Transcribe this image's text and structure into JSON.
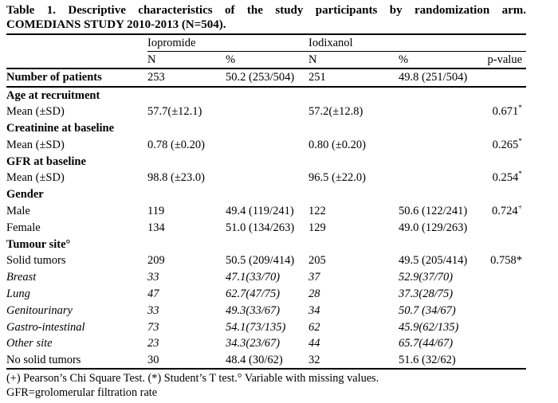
{
  "page": {
    "background": "#ffffff",
    "text_color": "#000000",
    "watermark_color": "#d9d9d9"
  },
  "title": {
    "line1": "Table 1. Descriptive characteristics of the study participants by randomization arm.",
    "line2": "COMEDIANS STUDY 2010-2013 (N=504)."
  },
  "table": {
    "group_headers": {
      "arm1": "Iopromide",
      "arm2": "Iodixanol"
    },
    "col_headers": {
      "n1": "N",
      "pct1": "%",
      "n2": "N",
      "pct2": "%",
      "p": "p-value"
    },
    "rows": [
      {
        "label": "Number of patients",
        "bold": true,
        "italic": false,
        "thick_bottom": true,
        "n1": "253",
        "pct1": "50.2 (253/504)",
        "n2": "251",
        "pct2": "49.8 (251/504)",
        "p": "",
        "p_sup": ""
      },
      {
        "label": "Age at recruitment",
        "bold": true,
        "italic": false,
        "thick_bottom": false,
        "n1": "",
        "pct1": "",
        "n2": "",
        "pct2": "",
        "p": "",
        "p_sup": ""
      },
      {
        "label": "Mean (±SD)",
        "bold": false,
        "italic": false,
        "thick_bottom": false,
        "n1": "57.7(±12.1)",
        "pct1": "",
        "n2": "57.2(±12.8)",
        "pct2": "",
        "p": "0.671",
        "p_sup": "*"
      },
      {
        "label": "Creatinine at baseline",
        "bold": true,
        "italic": false,
        "thick_bottom": false,
        "n1": "",
        "pct1": "",
        "n2": "",
        "pct2": "",
        "p": "",
        "p_sup": ""
      },
      {
        "label": "Mean (±SD)",
        "bold": false,
        "italic": false,
        "thick_bottom": false,
        "n1": "0.78 (±0.20)",
        "pct1": "",
        "n2": "0.80 (±0.20)",
        "pct2": "",
        "p": "0.265",
        "p_sup": "*"
      },
      {
        "label": "GFR at baseline",
        "bold": true,
        "italic": false,
        "thick_bottom": false,
        "n1": "",
        "pct1": "",
        "n2": "",
        "pct2": "",
        "p": "",
        "p_sup": ""
      },
      {
        "label": "Mean (±SD)",
        "bold": false,
        "italic": false,
        "thick_bottom": false,
        "n1": "98.8 (±23.0)",
        "pct1": "",
        "n2": "96.5 (±22.0)",
        "pct2": "",
        "p": "0.254",
        "p_sup": "*"
      },
      {
        "label": "Gender",
        "bold": true,
        "italic": false,
        "thick_bottom": false,
        "n1": "",
        "pct1": "",
        "n2": "",
        "pct2": "",
        "p": "",
        "p_sup": ""
      },
      {
        "label": "Male",
        "bold": false,
        "italic": false,
        "thick_bottom": false,
        "n1": "119",
        "pct1": "49.4 (119/241)",
        "n2": "122",
        "pct2": "50.6 (122/241)",
        "p": "0.724",
        "p_sup": "+"
      },
      {
        "label": "Female",
        "bold": false,
        "italic": false,
        "thick_bottom": false,
        "n1": "134",
        "pct1": "51.0 (134/263)",
        "n2": "129",
        "pct2": "49.0 (129/263)",
        "p": "",
        "p_sup": ""
      },
      {
        "label": "Tumour site°",
        "bold": true,
        "italic": false,
        "thick_bottom": false,
        "n1": "",
        "pct1": "",
        "n2": "",
        "pct2": "",
        "p": "",
        "p_sup": ""
      },
      {
        "label": "Solid tumors",
        "bold": false,
        "italic": false,
        "thick_bottom": false,
        "n1": "209",
        "pct1": "50.5 (209/414)",
        "n2": "205",
        "pct2": "49.5 (205/414)",
        "p": "0.758*",
        "p_sup": ""
      },
      {
        "label": "Breast",
        "bold": false,
        "italic": true,
        "thick_bottom": false,
        "n1": "33",
        "pct1": "47.1(33/70)",
        "n2": "37",
        "pct2": "52.9(37/70)",
        "p": "",
        "p_sup": ""
      },
      {
        "label": "Lung",
        "bold": false,
        "italic": true,
        "thick_bottom": false,
        "n1": "47",
        "pct1": "62.7(47/75)",
        "n2": "28",
        "pct2": "37.3(28/75)",
        "p": "",
        "p_sup": ""
      },
      {
        "label": "Genitourinary",
        "bold": false,
        "italic": true,
        "thick_bottom": false,
        "n1": "33",
        "pct1": "49.3(33/67)",
        "n2": "34",
        "pct2": "50.7 (34/67)",
        "p": "",
        "p_sup": ""
      },
      {
        "label": "Gastro-intestinal",
        "bold": false,
        "italic": true,
        "thick_bottom": false,
        "n1": "73",
        "pct1": "54.1(73/135)",
        "n2": "62",
        "pct2": "45.9(62/135)",
        "p": "",
        "p_sup": ""
      },
      {
        "label": "Other site",
        "bold": false,
        "italic": true,
        "thick_bottom": false,
        "n1": "23",
        "pct1": "34.3(23/67)",
        "n2": "44",
        "pct2": "65.7(44/67)",
        "p": "",
        "p_sup": ""
      },
      {
        "label": "No solid tumors",
        "bold": false,
        "italic": false,
        "thick_bottom": false,
        "n1": "30",
        "pct1": "48.4 (30/62)",
        "n2": "32",
        "pct2": "51.6 (32/62)",
        "p": "",
        "p_sup": ""
      }
    ]
  },
  "footnotes": {
    "line1": "(+) Pearson’s Chi Square Test. (*) Student’s T test.° Variable with missing values.",
    "line2": "GFR=grolomerular filtration rate"
  }
}
